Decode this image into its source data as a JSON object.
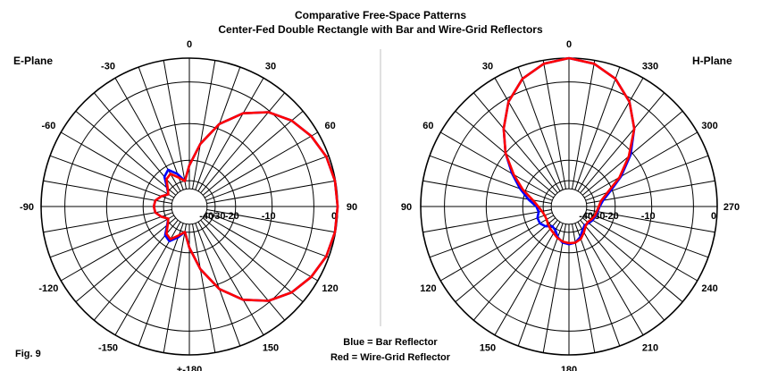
{
  "title_line1": "Comparative Free-Space Patterns",
  "title_line2": "Center-Fed Double Rectangle with Bar and Wire-Grid Reflectors",
  "fig_label": "Fig. 9",
  "legend": {
    "blue": "Blue = Bar Reflector",
    "red": "Red = Wire-Grid Reflector"
  },
  "colors": {
    "blue": "#0000ff",
    "red": "#ff0000",
    "grid": "#000000"
  },
  "chart_data": [
    {
      "type": "polar",
      "plane": "E-Plane",
      "angle_labels": [
        {
          "deg": 0,
          "text": "0"
        },
        {
          "deg": 30,
          "text": "30"
        },
        {
          "deg": 60,
          "text": "60"
        },
        {
          "deg": 90,
          "text": "90"
        },
        {
          "deg": 120,
          "text": "120"
        },
        {
          "deg": 150,
          "text": "150"
        },
        {
          "deg": 180,
          "text": "+-180"
        },
        {
          "deg": -150,
          "text": "-150"
        },
        {
          "deg": -120,
          "text": "-120"
        },
        {
          "deg": -90,
          "text": "-90"
        },
        {
          "deg": -60,
          "text": "-60"
        },
        {
          "deg": -30,
          "text": "-30"
        }
      ],
      "radial_labels": [
        "0",
        "-10",
        "-20",
        "-30",
        "-40"
      ],
      "series": [
        {
          "name": "Bar Reflector",
          "color": "blue",
          "points": [
            [
              0,
              -22
            ],
            [
              10,
              -14.5
            ],
            [
              20,
              -9
            ],
            [
              30,
              -5.5
            ],
            [
              40,
              -3.2
            ],
            [
              50,
              -1.8
            ],
            [
              60,
              -0.9
            ],
            [
              70,
              -0.3
            ],
            [
              80,
              -0.05
            ],
            [
              90,
              0
            ],
            [
              100,
              -0.05
            ],
            [
              110,
              -0.3
            ],
            [
              120,
              -0.9
            ],
            [
              130,
              -1.8
            ],
            [
              140,
              -3.2
            ],
            [
              150,
              -5.5
            ],
            [
              160,
              -9
            ],
            [
              170,
              -14.5
            ],
            [
              180,
              -22
            ],
            [
              190,
              -30
            ],
            [
              200,
              -26
            ],
            [
              210,
              -22.5
            ],
            [
              220,
              -23.5
            ],
            [
              230,
              -28
            ],
            [
              240,
              -31
            ],
            [
              250,
              -27.5
            ],
            [
              260,
              -25
            ],
            [
              270,
              -24.5
            ],
            [
              280,
              -25
            ],
            [
              290,
              -27.5
            ],
            [
              300,
              -31
            ],
            [
              310,
              -28
            ],
            [
              320,
              -23
            ],
            [
              330,
              -21.5
            ],
            [
              340,
              -25
            ],
            [
              350,
              -30
            ]
          ]
        },
        {
          "name": "Wire-Grid Reflector",
          "color": "red",
          "points": [
            [
              0,
              -22
            ],
            [
              10,
              -14.5
            ],
            [
              20,
              -9
            ],
            [
              30,
              -5.5
            ],
            [
              40,
              -3.2
            ],
            [
              50,
              -1.8
            ],
            [
              60,
              -0.9
            ],
            [
              70,
              -0.3
            ],
            [
              80,
              -0.05
            ],
            [
              90,
              0
            ],
            [
              100,
              -0.05
            ],
            [
              110,
              -0.3
            ],
            [
              120,
              -0.9
            ],
            [
              130,
              -1.8
            ],
            [
              140,
              -3.2
            ],
            [
              150,
              -5.5
            ],
            [
              160,
              -9
            ],
            [
              170,
              -14.5
            ],
            [
              180,
              -22
            ],
            [
              190,
              -30
            ],
            [
              200,
              -27
            ],
            [
              210,
              -23.5
            ],
            [
              220,
              -24.5
            ],
            [
              230,
              -28.5
            ],
            [
              240,
              -31
            ],
            [
              250,
              -27.5
            ],
            [
              260,
              -25
            ],
            [
              270,
              -24.5
            ],
            [
              280,
              -25
            ],
            [
              290,
              -27.5
            ],
            [
              300,
              -31
            ],
            [
              310,
              -28.5
            ],
            [
              320,
              -24.5
            ],
            [
              330,
              -23.5
            ],
            [
              340,
              -27
            ],
            [
              350,
              -30
            ]
          ]
        }
      ]
    },
    {
      "type": "polar",
      "plane": "H-Plane",
      "angle_labels": [
        {
          "deg": 0,
          "text": "0"
        },
        {
          "deg": 30,
          "text": "330"
        },
        {
          "deg": 60,
          "text": "300"
        },
        {
          "deg": 90,
          "text": "270"
        },
        {
          "deg": 120,
          "text": "240"
        },
        {
          "deg": 150,
          "text": "210"
        },
        {
          "deg": 180,
          "text": "180"
        },
        {
          "deg": -150,
          "text": "150"
        },
        {
          "deg": -120,
          "text": "120"
        },
        {
          "deg": -90,
          "text": "90"
        },
        {
          "deg": -60,
          "text": "60"
        },
        {
          "deg": -30,
          "text": "30"
        }
      ],
      "radial_labels": [
        "0",
        "-10",
        "-20",
        "-30",
        "-40"
      ],
      "series": [
        {
          "name": "Bar Reflector",
          "color": "blue",
          "points": [
            [
              0,
              0
            ],
            [
              10,
              -0.4
            ],
            [
              20,
              -1.5
            ],
            [
              30,
              -3.5
            ],
            [
              40,
              -6.5
            ],
            [
              50,
              -10.5
            ],
            [
              60,
              -15.5
            ],
            [
              70,
              -21
            ],
            [
              80,
              -25
            ],
            [
              90,
              -27
            ],
            [
              100,
              -28
            ],
            [
              110,
              -28.5
            ],
            [
              120,
              -29
            ],
            [
              130,
              -30
            ],
            [
              140,
              -31
            ],
            [
              150,
              -29
            ],
            [
              160,
              -26
            ],
            [
              170,
              -24
            ],
            [
              180,
              -23.5
            ],
            [
              190,
              -24
            ],
            [
              200,
              -26
            ],
            [
              210,
              -29
            ],
            [
              220,
              -30
            ],
            [
              230,
              -27
            ],
            [
              240,
              -25.5
            ],
            [
              250,
              -25.5
            ],
            [
              260,
              -27
            ],
            [
              270,
              -26
            ],
            [
              280,
              -22
            ],
            [
              290,
              -18
            ],
            [
              300,
              -14
            ],
            [
              310,
              -10
            ],
            [
              320,
              -6.5
            ],
            [
              330,
              -3.5
            ],
            [
              340,
              -1.5
            ],
            [
              350,
              -0.4
            ]
          ]
        },
        {
          "name": "Wire-Grid Reflector",
          "color": "red",
          "points": [
            [
              0,
              0
            ],
            [
              10,
              -0.4
            ],
            [
              20,
              -1.5
            ],
            [
              30,
              -3.5
            ],
            [
              40,
              -6.5
            ],
            [
              50,
              -11
            ],
            [
              60,
              -16
            ],
            [
              70,
              -22
            ],
            [
              80,
              -26
            ],
            [
              90,
              -27.5
            ],
            [
              100,
              -28.5
            ],
            [
              110,
              -29
            ],
            [
              120,
              -30
            ],
            [
              130,
              -31
            ],
            [
              140,
              -30
            ],
            [
              150,
              -27.5
            ],
            [
              160,
              -25
            ],
            [
              170,
              -24
            ],
            [
              180,
              -24
            ],
            [
              190,
              -24.5
            ],
            [
              200,
              -25.5
            ],
            [
              210,
              -27
            ],
            [
              220,
              -28
            ],
            [
              230,
              -29
            ],
            [
              240,
              -30
            ],
            [
              250,
              -30
            ],
            [
              260,
              -29
            ],
            [
              270,
              -27
            ],
            [
              280,
              -24
            ],
            [
              290,
              -19
            ],
            [
              300,
              -14.5
            ],
            [
              310,
              -10
            ],
            [
              320,
              -6.5
            ],
            [
              330,
              -3.5
            ],
            [
              340,
              -1.5
            ],
            [
              350,
              -0.4
            ]
          ]
        }
      ]
    }
  ]
}
